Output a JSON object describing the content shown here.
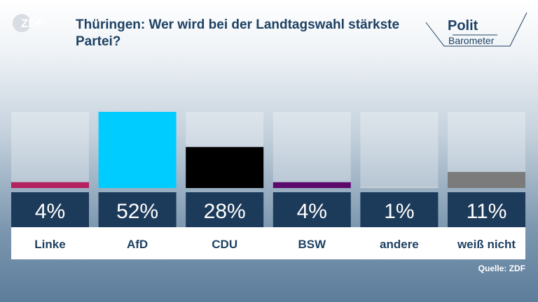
{
  "header": {
    "logo": "ZDF",
    "title": "Thüringen: Wer wird bei der Landtagswahl stärkste Partei?",
    "brand_line1": "Polit",
    "brand_line2": "Barometer"
  },
  "chart_data": {
    "type": "bar",
    "categories": [
      "Linke",
      "AfD",
      "CDU",
      "BSW",
      "andere",
      "weiß nicht"
    ],
    "values": [
      4,
      52,
      28,
      4,
      1,
      11
    ],
    "value_labels": [
      "4%",
      "52%",
      "28%",
      "4%",
      "1%",
      "11%"
    ],
    "colors": [
      "#b3215f",
      "#00ccff",
      "#000000",
      "#5b0a6c",
      "#c7ced3",
      "#7b7b7b"
    ],
    "ylim": [
      0,
      52
    ],
    "title": "Thüringen: Wer wird bei der Landtagswahl stärkste Partei?",
    "xlabel": "",
    "ylabel": ""
  },
  "footer": {
    "source": "Quelle: ZDF"
  }
}
